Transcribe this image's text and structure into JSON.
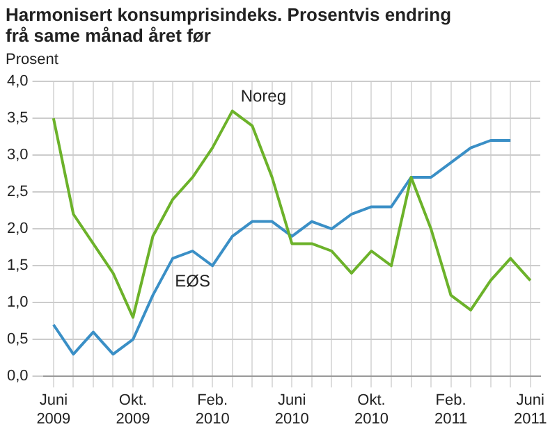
{
  "chart_data": {
    "type": "line",
    "title": "Harmonisert konsumprisindeks. Prosentvis endring frå same månad året før",
    "ylabel": "Prosent",
    "categories": [
      "Juni 2009",
      null,
      null,
      null,
      "Okt. 2009",
      null,
      null,
      null,
      "Feb. 2010",
      null,
      null,
      null,
      "Juni 2010",
      null,
      null,
      null,
      "Okt. 2010",
      null,
      null,
      null,
      "Feb. 2011",
      null,
      null,
      null,
      "Juni 2011"
    ],
    "series": [
      {
        "name": "Noreg",
        "color": "#6cb22a",
        "values": [
          3.5,
          2.2,
          1.8,
          1.4,
          0.8,
          1.9,
          2.4,
          2.7,
          3.1,
          3.6,
          3.4,
          2.7,
          1.8,
          1.8,
          1.7,
          1.4,
          1.7,
          1.5,
          2.7,
          2.0,
          1.1,
          0.9,
          1.3,
          1.6,
          1.3
        ]
      },
      {
        "name": "EØS",
        "color": "#3a8fc6",
        "values": [
          0.7,
          0.3,
          0.6,
          0.3,
          0.5,
          1.1,
          1.6,
          1.7,
          1.5,
          1.9,
          2.1,
          2.1,
          1.9,
          2.1,
          2.0,
          2.2,
          2.3,
          2.3,
          2.7,
          2.7,
          2.9,
          3.1,
          3.2,
          3.2,
          null
        ]
      }
    ],
    "ylim": [
      0,
      4
    ],
    "yticks": [
      {
        "value": 0,
        "label": "0,0"
      },
      {
        "value": 0.5,
        "label": "0,5"
      },
      {
        "value": 1,
        "label": "1,0"
      },
      {
        "value": 1.5,
        "label": "1,5"
      },
      {
        "value": 2,
        "label": "2,0"
      },
      {
        "value": 2.5,
        "label": "2,5"
      },
      {
        "value": 3,
        "label": "3,0"
      },
      {
        "value": 3.5,
        "label": "3,5"
      },
      {
        "value": 4,
        "label": "4,0"
      }
    ],
    "grid": true,
    "legend": false,
    "marker": "none",
    "line_style": "solid"
  }
}
